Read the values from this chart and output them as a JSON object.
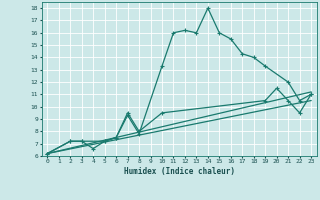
{
  "xlabel": "Humidex (Indice chaleur)",
  "background_color": "#cce8e8",
  "grid_color": "#ffffff",
  "line_color": "#1a7a6e",
  "xlim": [
    -0.5,
    23.5
  ],
  "ylim": [
    6,
    18.5
  ],
  "xticks": [
    0,
    1,
    2,
    3,
    4,
    5,
    6,
    7,
    8,
    9,
    10,
    11,
    12,
    13,
    14,
    15,
    16,
    17,
    18,
    19,
    20,
    21,
    22,
    23
  ],
  "yticks": [
    6,
    7,
    8,
    9,
    10,
    11,
    12,
    13,
    14,
    15,
    16,
    17,
    18
  ],
  "series": [
    {
      "x": [
        0,
        2,
        3,
        4,
        5,
        6,
        7,
        8,
        10,
        11,
        12,
        13,
        14,
        15,
        16,
        17,
        18,
        19,
        21,
        22,
        23
      ],
      "y": [
        6.2,
        7.2,
        7.2,
        6.6,
        7.2,
        7.5,
        9.3,
        7.8,
        13.3,
        16.0,
        16.2,
        16.0,
        18.0,
        16.0,
        15.5,
        14.3,
        14.0,
        13.3,
        12.0,
        10.5,
        11.0
      ],
      "has_markers": true
    },
    {
      "x": [
        0,
        2,
        3,
        5,
        6,
        7,
        8,
        10,
        19,
        20,
        21,
        22,
        23
      ],
      "y": [
        6.2,
        7.2,
        7.2,
        7.2,
        7.5,
        9.5,
        8.0,
        9.5,
        10.5,
        11.5,
        10.5,
        9.5,
        11.0
      ],
      "has_markers": true
    },
    {
      "x": [
        0,
        23
      ],
      "y": [
        6.2,
        10.5
      ],
      "has_markers": false
    },
    {
      "x": [
        0,
        23
      ],
      "y": [
        6.2,
        11.2
      ],
      "has_markers": false
    }
  ]
}
